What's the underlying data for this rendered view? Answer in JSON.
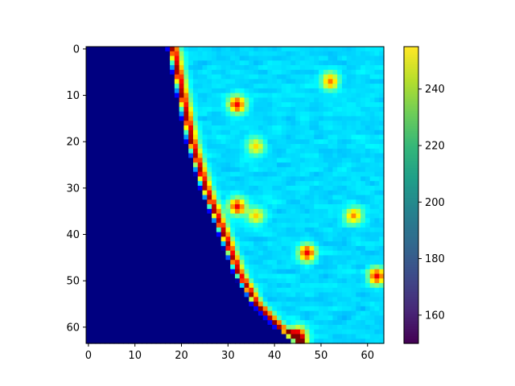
{
  "chart_data": {
    "type": "heatmap",
    "title": "",
    "xlabel": "",
    "ylabel": "",
    "grid_size": [
      64,
      64
    ],
    "x_ticks": [
      0,
      10,
      20,
      30,
      40,
      50,
      60
    ],
    "y_ticks": [
      0,
      10,
      20,
      30,
      40,
      50,
      60
    ],
    "xlim": [
      -0.5,
      63.5
    ],
    "ylim": [
      63.5,
      -0.5
    ],
    "y_axis_inverted": true,
    "image_colormap": "jet",
    "colorbar": {
      "colormap": "viridis",
      "range": [
        150,
        255
      ],
      "ticks": [
        160,
        180,
        200,
        220,
        240
      ],
      "placement": "right"
    },
    "features": {
      "background_region": "low values (dark blue) left of a curved boundary",
      "boundary_ridge": [
        [
          18,
          0
        ],
        [
          20,
          10
        ],
        [
          22,
          20
        ],
        [
          25,
          30
        ],
        [
          29,
          40
        ],
        [
          32,
          48
        ],
        [
          36,
          55
        ],
        [
          41,
          60
        ],
        [
          45,
          63
        ]
      ],
      "hot_spots": [
        {
          "x": 32,
          "y": 12,
          "level": "high"
        },
        {
          "x": 52,
          "y": 7,
          "level": "medium-high"
        },
        {
          "x": 36,
          "y": 21,
          "level": "medium"
        },
        {
          "x": 32,
          "y": 34,
          "level": "high"
        },
        {
          "x": 57,
          "y": 36,
          "level": "medium-high"
        },
        {
          "x": 47,
          "y": 44,
          "level": "high"
        },
        {
          "x": 36,
          "y": 36,
          "level": "medium"
        },
        {
          "x": 62,
          "y": 49,
          "level": "high"
        },
        {
          "x": 45,
          "y": 62,
          "level": "very-high"
        }
      ]
    }
  }
}
